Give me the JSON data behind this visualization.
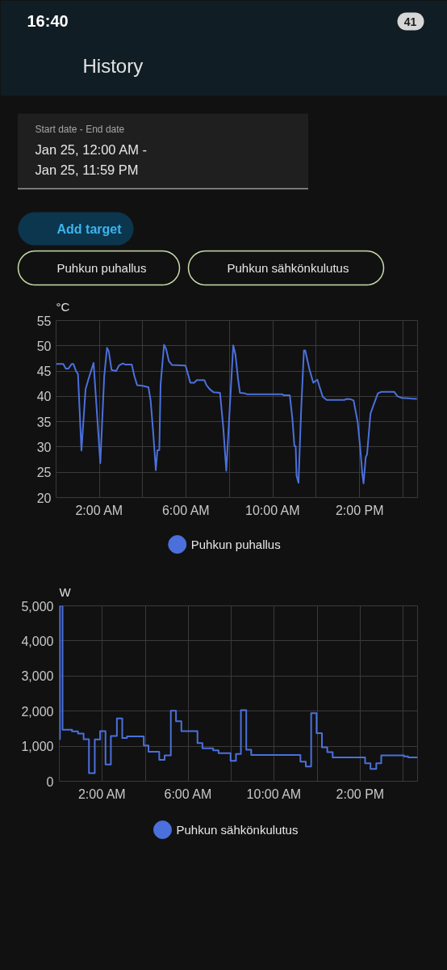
{
  "chart_data": [
    {
      "type": "other",
      "title": "History",
      "annotations": [
        "16:40",
        "41",
        "Start date - End date",
        "Jan 25, 12:00 AM -",
        "Jan 25, 11:59 PM",
        "Add target",
        "Puhkun puhallus",
        "Puhkun sähkönkulutus"
      ]
    },
    {
      "type": "line",
      "ylabel": "°C",
      "xlim": [
        0,
        16.67
      ],
      "xticks": [
        {
          "value": 2,
          "label": "2:00 AM"
        },
        {
          "value": 4,
          "label": null
        },
        {
          "value": 6,
          "label": "6:00 AM"
        },
        {
          "value": 8,
          "label": null
        },
        {
          "value": 10,
          "label": "10:00 AM"
        },
        {
          "value": 12,
          "label": null
        },
        {
          "value": 14,
          "label": "2:00 PM"
        },
        {
          "value": 16,
          "label": null
        }
      ],
      "ylim": [
        20,
        55
      ],
      "yticks": [
        20,
        25,
        30,
        35,
        40,
        45,
        50,
        55
      ],
      "grid": true,
      "legend": "bottom",
      "x": [
        0,
        0.33,
        0.45,
        0.57,
        0.72,
        0.8,
        0.91,
        1.01,
        1.17,
        1.36,
        1.5,
        1.73,
        2.04,
        2.22,
        2.35,
        2.43,
        2.56,
        2.77,
        2.9,
        3.08,
        3.18,
        3.49,
        3.61,
        3.74,
        3.98,
        4.26,
        4.36,
        4.48,
        4.6,
        4.67,
        4.76,
        4.82,
        4.98,
        5.08,
        5.2,
        5.35,
        5.97,
        6.09,
        6.19,
        6.37,
        6.49,
        6.84,
        6.94,
        7.09,
        7.27,
        7.56,
        7.71,
        7.85,
        8.04,
        8.17,
        8.27,
        8.39,
        8.48,
        8.7,
        8.82,
        10.44,
        10.5,
        10.78,
        10.9,
        10.99,
        11.05,
        11.09,
        11.18,
        11.3,
        11.43,
        11.49,
        11.68,
        11.86,
        11.95,
        12.05,
        12.15,
        12.3,
        12.48,
        13.29,
        13.41,
        13.6,
        13.72,
        13.91,
        14.03,
        14.12,
        14.18,
        14.28,
        14.34,
        14.5,
        14.65,
        14.84,
        15.0,
        15.59,
        15.75,
        15.96,
        16.64
      ],
      "series": [
        {
          "name": "Puhkun puhallus",
          "color": "#4b70dc",
          "values": [
            46.4,
            46.4,
            45.5,
            45.5,
            46.4,
            46.4,
            45.1,
            44.4,
            29.3,
            41.4,
            43.5,
            46.6,
            26.8,
            44.0,
            49.6,
            48.9,
            45.2,
            45.0,
            46.1,
            46.5,
            46.3,
            46.3,
            44.0,
            42.2,
            42.1,
            41.8,
            39.2,
            32.8,
            25.4,
            29.3,
            29.4,
            42.4,
            50.2,
            49.3,
            47.0,
            46.2,
            46.1,
            44.3,
            42.7,
            42.7,
            43.2,
            43.2,
            42.2,
            41.4,
            40.8,
            40.7,
            33.9,
            25.3,
            40.0,
            50.1,
            48.3,
            43.5,
            40.7,
            40.6,
            40.4,
            40.4,
            40.2,
            40.2,
            35.5,
            30.2,
            30.1,
            24.3,
            22.9,
            37.1,
            49.1,
            49.1,
            45.4,
            42.7,
            43.0,
            43.3,
            41.9,
            39.9,
            39.3,
            39.3,
            39.5,
            39.4,
            39.2,
            34.9,
            29.6,
            24.8,
            22.8,
            28.0,
            28.5,
            36.6,
            38.4,
            40.6,
            40.9,
            40.9,
            40.0,
            39.7,
            39.5
          ]
        }
      ]
    },
    {
      "type": "step",
      "ylabel": "W",
      "xlim": [
        0,
        16.67
      ],
      "xticks": [
        {
          "value": 2,
          "label": "2:00 AM"
        },
        {
          "value": 4,
          "label": null
        },
        {
          "value": 6,
          "label": "6:00 AM"
        },
        {
          "value": 8,
          "label": null
        },
        {
          "value": 10,
          "label": "10:00 AM"
        },
        {
          "value": 12,
          "label": null
        },
        {
          "value": 14,
          "label": "2:00 PM"
        },
        {
          "value": 16,
          "label": null
        }
      ],
      "ylim": [
        0,
        5000
      ],
      "yticks": [
        0,
        {
          "value": 1000,
          "label": "1,000"
        },
        {
          "value": 2000,
          "label": "2,000"
        },
        {
          "value": 3000,
          "label": "3,000"
        },
        {
          "value": 4000,
          "label": "4,000"
        },
        {
          "value": 5000,
          "label": "5,000"
        }
      ],
      "grid": true,
      "legend": "bottom",
      "x": [
        0,
        0.03,
        0.15,
        0.59,
        0.87,
        1.13,
        1.38,
        1.65,
        1.9,
        2.15,
        2.4,
        2.68,
        2.93,
        3.15,
        3.93,
        4.15,
        4.65,
        4.9,
        5.19,
        5.43,
        5.68,
        6.43,
        6.66,
        7.16,
        7.41,
        7.97,
        8.22,
        8.45,
        8.7,
        8.93,
        11.22,
        11.47,
        11.72,
        11.97,
        12.22,
        12.47,
        12.72,
        14.23,
        14.48,
        14.75,
        14.98,
        16.04,
        16.23,
        16.67
      ],
      "series": [
        {
          "name": "Puhkun sähkönkulutus",
          "color": "#4b70dc",
          "values": [
            1200,
            5000,
            1470,
            1420,
            1360,
            1200,
            230,
            1190,
            1430,
            480,
            1290,
            1790,
            1230,
            1280,
            1020,
            840,
            610,
            740,
            2010,
            1710,
            1430,
            1090,
            940,
            880,
            800,
            580,
            780,
            2030,
            900,
            750,
            560,
            420,
            1940,
            1370,
            970,
            830,
            680,
            510,
            350,
            510,
            740,
            710,
            680,
            680
          ]
        }
      ]
    }
  ]
}
